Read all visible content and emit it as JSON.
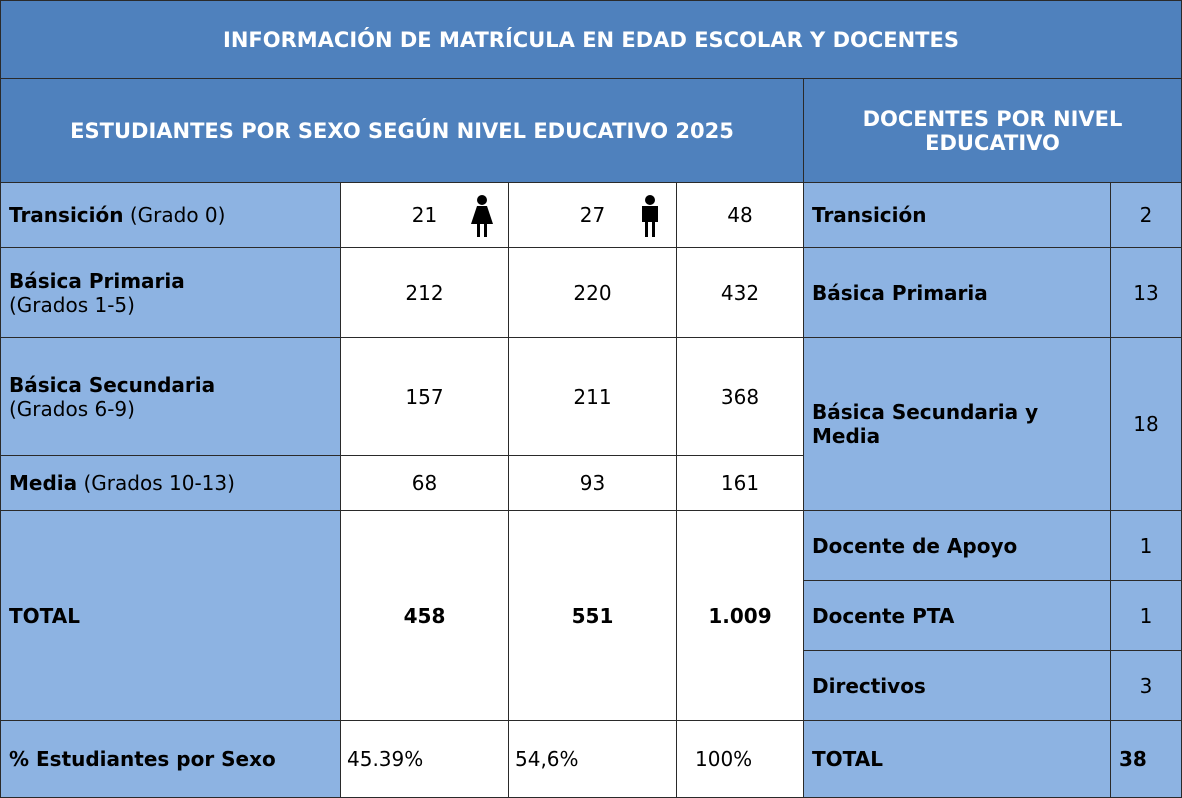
{
  "title": "INFORMACIÓN DE MATRÍCULA EN EDAD ESCOLAR Y DOCENTES",
  "students": {
    "header": "ESTUDIANTES POR SEXO SEGÚN NIVEL EDUCATIVO 2025",
    "rows": [
      {
        "label": "Transición",
        "sublabel": "(Grado 0)",
        "female": "21",
        "male": "27",
        "total": "48"
      },
      {
        "label": "Básica Primaria",
        "sublabel": "(Grados 1-5)",
        "female": "212",
        "male": "220",
        "total": "432"
      },
      {
        "label": "Básica Secundaria",
        "sublabel": "(Grados 6-9)",
        "female": "157",
        "male": "211",
        "total": "368"
      },
      {
        "label": "Media",
        "sublabel": "(Grados 10-13)",
        "female": "68",
        "male": "93",
        "total": "161"
      }
    ],
    "total": {
      "label": "TOTAL",
      "female": "458",
      "male": "551",
      "total": "1.009"
    },
    "percent": {
      "label": "% Estudiantes por Sexo",
      "female": "45.39%",
      "male": "54,6%",
      "total": "100%"
    }
  },
  "teachers": {
    "header": "DOCENTES POR NIVEL EDUCATIVO",
    "rows": [
      {
        "label": "Transición",
        "value": "2"
      },
      {
        "label": "Básica Primaria",
        "value": "13"
      },
      {
        "label": "Básica Secundaria y Media",
        "value": "18"
      },
      {
        "label": "Docente de Apoyo",
        "value": "1"
      },
      {
        "label": "Docente PTA",
        "value": "1"
      },
      {
        "label": "Directivos",
        "value": "3"
      }
    ],
    "total": {
      "label": "TOTAL",
      "value": "38"
    }
  }
}
